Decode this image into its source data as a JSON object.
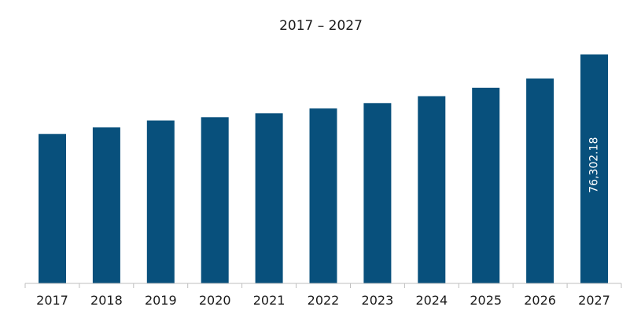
{
  "chart_data": {
    "type": "bar",
    "title": "2017 – 2027",
    "xlabel": "",
    "ylabel": "",
    "categories": [
      "2017",
      "2018",
      "2019",
      "2020",
      "2021",
      "2022",
      "2023",
      "2024",
      "2025",
      "2026",
      "2027"
    ],
    "values": [
      49800,
      52000,
      54300,
      55400,
      56700,
      58300,
      60100,
      62400,
      65200,
      68300,
      76302.18
    ],
    "data_labels": [
      "",
      "",
      "",
      "",
      "",
      "",
      "",
      "",
      "",
      "",
      "76,302.18"
    ],
    "ylim": [
      0,
      84000
    ],
    "grid": false,
    "legend": "none",
    "colors": {
      "bar": "#08507c",
      "axis": "#bfbfbf",
      "text": "#1a1a1a",
      "data_label": "#ffffff"
    }
  }
}
